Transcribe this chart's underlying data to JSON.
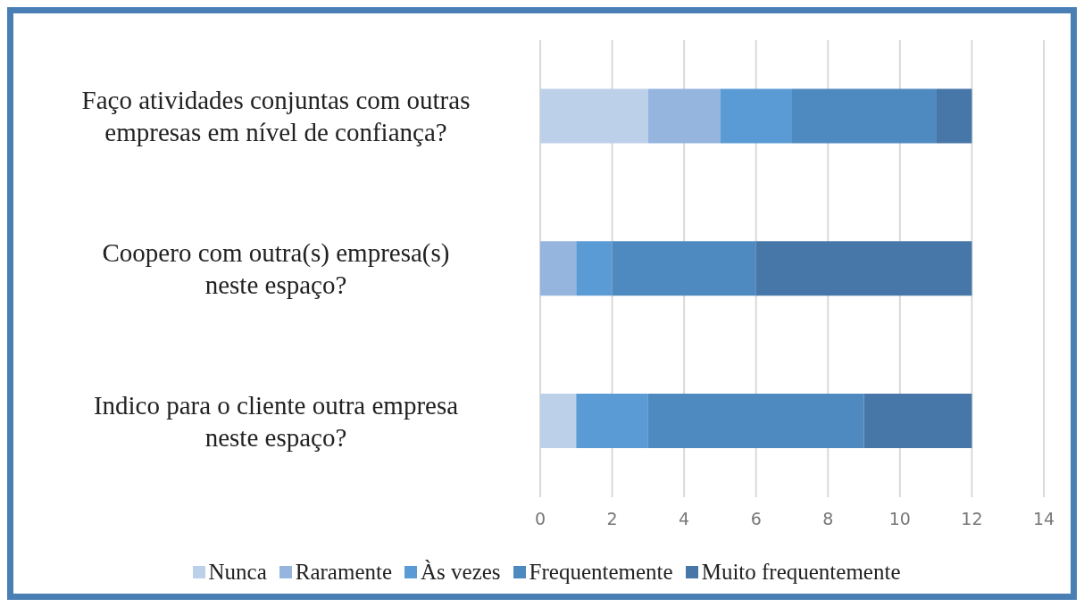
{
  "chart_data": {
    "type": "bar",
    "orientation": "horizontal",
    "stacked": true,
    "categories": [
      "Faço atividades conjuntas com outras empresas em nível de confiança?",
      "Coopero com outra(s) empresa(s) neste espaço?",
      "Indico para o cliente outra empresa neste espaço?"
    ],
    "series": [
      {
        "name": "Nunca",
        "color": "#bdd0e9",
        "values": [
          3,
          0,
          1
        ]
      },
      {
        "name": "Raramente",
        "color": "#95b5df",
        "values": [
          2,
          1,
          0
        ]
      },
      {
        "name": "Às vezes",
        "color": "#5b9bd5",
        "values": [
          2,
          1,
          2
        ]
      },
      {
        "name": "Frequentemente",
        "color": "#4e8abf",
        "values": [
          4,
          4,
          6
        ]
      },
      {
        "name": "Muito frequentemente",
        "color": "#4677a8",
        "values": [
          1,
          6,
          3
        ]
      }
    ],
    "xlim": [
      0,
      14
    ],
    "xticks": [
      0,
      2,
      4,
      6,
      8,
      10,
      12,
      14
    ],
    "grid": "x",
    "legend": "bottom"
  }
}
